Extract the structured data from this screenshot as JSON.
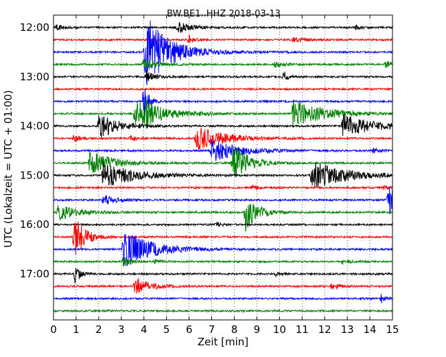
{
  "chart_data": {
    "type": "line",
    "title": "BW.BE1..HHZ 2018-03-13",
    "xlabel": "Zeit  [min]",
    "ylabel": "UTC (Lokalzeit = UTC + 01:00)",
    "xlim": [
      0,
      15
    ],
    "x_ticks": [
      "0",
      "1",
      "2",
      "3",
      "4",
      "5",
      "6",
      "7",
      "8",
      "9",
      "10",
      "11",
      "12",
      "13",
      "14",
      "15"
    ],
    "y_ticks": [
      {
        "label": "12:00",
        "trace": 0
      },
      {
        "label": "13:00",
        "trace": 4
      },
      {
        "label": "14:00",
        "trace": 8
      },
      {
        "label": "15:00",
        "trace": 12
      },
      {
        "label": "16:00",
        "trace": 16
      },
      {
        "label": "17:00",
        "trace": 20
      }
    ],
    "grid": "vertical dotted",
    "trace_interval_minutes": 15,
    "colors": [
      "#000000",
      "#ff0000",
      "#0000ff",
      "#008000"
    ],
    "traces": [
      {
        "start": "12:00",
        "color": "#000000",
        "events": [
          [
            0.15,
            5,
            0.3
          ],
          [
            5.5,
            8,
            0.6
          ],
          [
            13.4,
            4,
            0.2
          ]
        ]
      },
      {
        "start": "12:15",
        "color": "#ff0000",
        "events": [
          [
            6.0,
            6,
            0.2
          ],
          [
            10.6,
            3,
            0.6
          ]
        ]
      },
      {
        "start": "12:30",
        "color": "#0000ff",
        "events": [
          [
            4.05,
            34,
            1.2
          ],
          [
            4.15,
            22,
            0.6
          ]
        ]
      },
      {
        "start": "12:45",
        "color": "#008000",
        "events": [
          [
            4.0,
            10,
            0.5
          ],
          [
            9.8,
            4,
            0.4
          ],
          [
            14.7,
            5,
            0.3
          ]
        ]
      },
      {
        "start": "13:00",
        "color": "#000000",
        "events": [
          [
            4.1,
            10,
            0.3
          ],
          [
            10.2,
            8,
            0.15
          ]
        ]
      },
      {
        "start": "13:15",
        "color": "#ff0000",
        "events": []
      },
      {
        "start": "13:30",
        "color": "#0000ff",
        "events": [
          [
            4.0,
            28,
            0.2
          ]
        ]
      },
      {
        "start": "13:45",
        "color": "#008000",
        "events": [
          [
            3.6,
            20,
            1.2
          ],
          [
            10.6,
            20,
            1.3
          ],
          [
            4.1,
            12,
            0.3
          ]
        ]
      },
      {
        "start": "14:00",
        "color": "#000000",
        "events": [
          [
            2.0,
            20,
            0.8
          ],
          [
            12.8,
            18,
            1.2
          ]
        ]
      },
      {
        "start": "14:15",
        "color": "#ff0000",
        "events": [
          [
            0.9,
            5,
            0.3
          ],
          [
            6.3,
            18,
            1.2
          ],
          [
            3.4,
            4,
            0.3
          ]
        ]
      },
      {
        "start": "14:30",
        "color": "#0000ff",
        "events": [
          [
            7.0,
            16,
            1.2
          ],
          [
            14.1,
            4,
            0.3
          ]
        ]
      },
      {
        "start": "14:45",
        "color": "#008000",
        "events": [
          [
            1.6,
            20,
            0.9
          ],
          [
            7.9,
            28,
            0.7
          ]
        ]
      },
      {
        "start": "15:00",
        "color": "#000000",
        "events": [
          [
            2.2,
            18,
            1.4
          ],
          [
            11.4,
            22,
            1.4
          ]
        ]
      },
      {
        "start": "15:15",
        "color": "#ff0000",
        "events": [
          [
            8.8,
            4,
            0.2
          ],
          [
            14.6,
            3,
            0.3
          ]
        ]
      },
      {
        "start": "15:30",
        "color": "#0000ff",
        "events": [
          [
            2.2,
            8,
            0.5
          ],
          [
            14.8,
            24,
            1.0
          ]
        ]
      },
      {
        "start": "15:45",
        "color": "#008000",
        "events": [
          [
            0.2,
            12,
            0.8
          ],
          [
            8.5,
            28,
            0.5
          ]
        ]
      },
      {
        "start": "16:00",
        "color": "#000000",
        "events": [
          [
            7.2,
            4,
            0.2
          ]
        ]
      },
      {
        "start": "16:15",
        "color": "#ff0000",
        "events": [
          [
            0.9,
            28,
            0.3
          ],
          [
            1.0,
            14,
            0.5
          ]
        ]
      },
      {
        "start": "16:30",
        "color": "#0000ff",
        "events": [
          [
            3.1,
            28,
            1.2
          ]
        ]
      },
      {
        "start": "16:45",
        "color": "#008000",
        "events": [
          [
            3.1,
            8,
            0.3
          ],
          [
            4.5,
            4,
            0.2
          ],
          [
            12.8,
            3,
            0.3
          ]
        ]
      },
      {
        "start": "17:00",
        "color": "#000000",
        "events": [
          [
            9.8,
            4,
            0.2
          ],
          [
            0.95,
            16,
            0.2
          ]
        ]
      },
      {
        "start": "17:15",
        "color": "#ff0000",
        "events": [
          [
            3.6,
            14,
            0.6
          ],
          [
            12.3,
            4,
            0.4
          ]
        ]
      },
      {
        "start": "17:30",
        "color": "#0000ff",
        "events": [
          [
            14.5,
            6,
            0.2
          ]
        ]
      },
      {
        "start": "17:45",
        "color": "#008000",
        "events": []
      }
    ]
  }
}
